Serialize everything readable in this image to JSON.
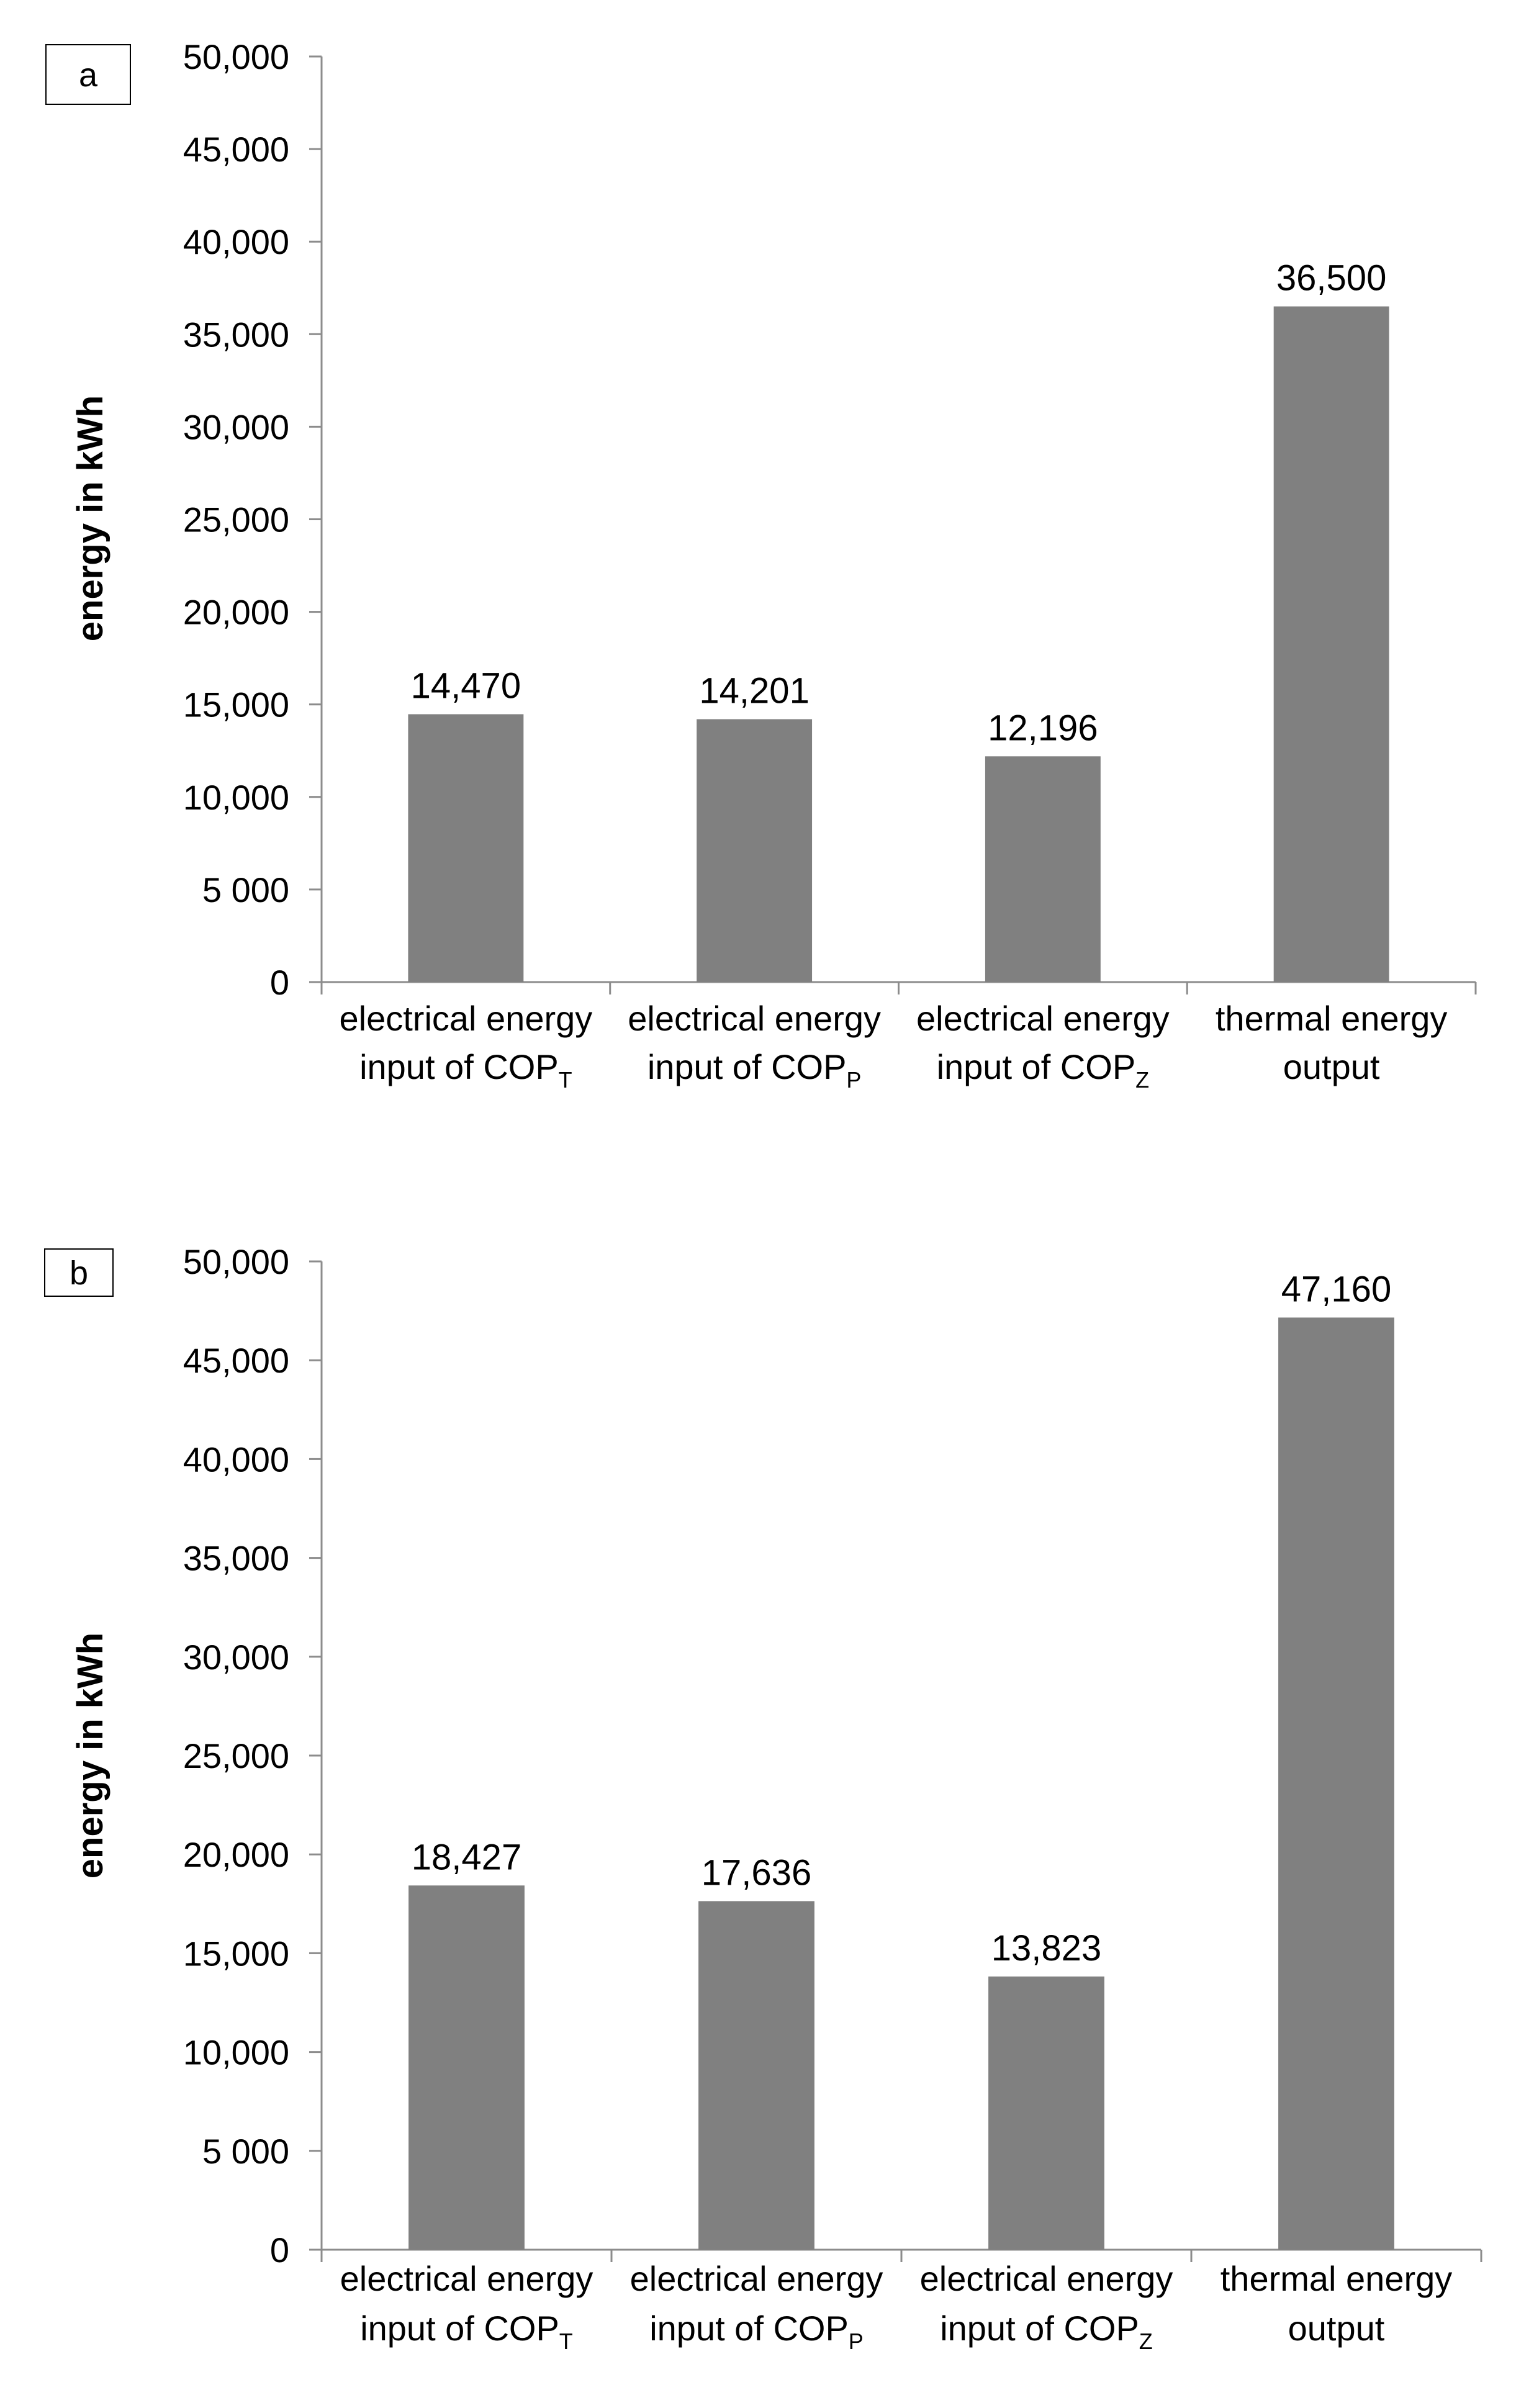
{
  "chart_data": [
    {
      "type": "bar",
      "panel_label": "a",
      "ylabel": "energy in kWh",
      "ylim": [
        0,
        50000
      ],
      "yticks": [
        0,
        5000,
        10000,
        15000,
        20000,
        25000,
        30000,
        35000,
        40000,
        45000,
        50000
      ],
      "ytick_labels": [
        "0",
        "5 000",
        "10,000",
        "15,000",
        "20,000",
        "25,000",
        "30,000",
        "35,000",
        "40,000",
        "45,000",
        "50,000"
      ],
      "categories": [
        {
          "line1": "electrical energy",
          "line2": "input of COP",
          "sub": "T"
        },
        {
          "line1": "electrical energy",
          "line2": "input of COP",
          "sub": "P"
        },
        {
          "line1": "electrical energy",
          "line2": "input of COP",
          "sub": "Z"
        },
        {
          "line1": "thermal energy",
          "line2": "output",
          "sub": ""
        }
      ],
      "values": [
        14470,
        14201,
        12196,
        36500
      ],
      "value_labels": [
        "14,470",
        "14,201",
        "12,196",
        "36,500"
      ],
      "bar_color": "#808080",
      "grid": false,
      "legend": false
    },
    {
      "type": "bar",
      "panel_label": "b",
      "ylabel": "energy in kWh",
      "ylim": [
        0,
        50000
      ],
      "yticks": [
        0,
        5000,
        10000,
        15000,
        20000,
        25000,
        30000,
        35000,
        40000,
        45000,
        50000
      ],
      "ytick_labels": [
        "0",
        "5 000",
        "10,000",
        "15,000",
        "20,000",
        "25,000",
        "30,000",
        "35,000",
        "40,000",
        "45,000",
        "50,000"
      ],
      "categories": [
        {
          "line1": "electrical energy",
          "line2": "input of COP",
          "sub": "T"
        },
        {
          "line1": "electrical energy",
          "line2": "input of COP",
          "sub": "P"
        },
        {
          "line1": "electrical energy",
          "line2": "input of COP",
          "sub": "Z"
        },
        {
          "line1": "thermal energy",
          "line2": "output",
          "sub": ""
        }
      ],
      "values": [
        18427,
        17636,
        13823,
        47160
      ],
      "value_labels": [
        "18,427",
        "17,636",
        "13,823",
        "47,160"
      ],
      "bar_color": "#808080",
      "grid": false,
      "legend": false
    }
  ]
}
